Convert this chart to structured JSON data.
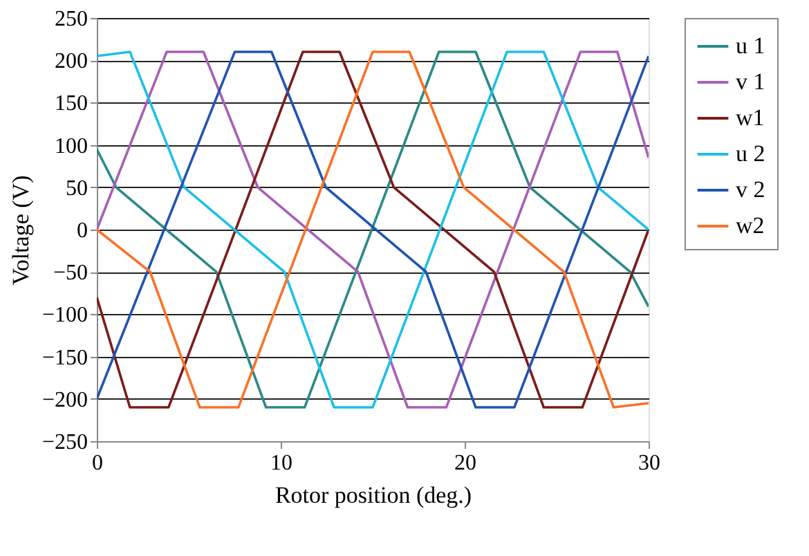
{
  "chart_data": {
    "type": "line",
    "xlabel": "Rotor position (deg.)",
    "ylabel": "Voltage (V)",
    "xlim": [
      0,
      30
    ],
    "xticks": [
      0,
      10,
      20,
      30
    ],
    "ylim": [
      -250,
      250
    ],
    "yticks": [
      -250,
      -200,
      -150,
      -100,
      -50,
      0,
      50,
      100,
      150,
      200,
      250
    ],
    "grid": "y",
    "legend": "right",
    "marker": "none",
    "line_style": "solid",
    "series": [
      {
        "name": "u 1",
        "color": "#2a8a86",
        "x": [
          0,
          1.05,
          6.5,
          9.2,
          11.3,
          18.6,
          20.6,
          23.55,
          29,
          30
        ],
        "values": [
          95,
          50,
          -50,
          -210,
          -210,
          210,
          210,
          50,
          -50,
          -91
        ]
      },
      {
        "name": "v 1",
        "color": "#a75fb5",
        "x": [
          0,
          3.8,
          5.8,
          8.75,
          14.2,
          16.9,
          19,
          26.3,
          28.3,
          30
        ],
        "values": [
          0,
          210,
          210,
          50,
          -50,
          -210,
          -210,
          210,
          210,
          85
        ]
      },
      {
        "name": "w1",
        "color": "#7b1c1c",
        "x": [
          0,
          1.8,
          3.9,
          11.2,
          13.2,
          16.15,
          21.6,
          24.3,
          26.4,
          30
        ],
        "values": [
          -80,
          -210,
          -210,
          210,
          210,
          50,
          -50,
          -210,
          -210,
          0
        ]
      },
      {
        "name": "u 2",
        "color": "#1fbfe8",
        "x": [
          0,
          1.8,
          4.75,
          10.2,
          12.9,
          15,
          22.3,
          24.3,
          27.25,
          30
        ],
        "values": [
          205,
          210,
          50,
          -50,
          -210,
          -210,
          210,
          210,
          50,
          0
        ]
      },
      {
        "name": "v 2",
        "color": "#2154b0",
        "x": [
          0,
          7.5,
          9.5,
          12.45,
          17.9,
          20.6,
          22.7,
          30
        ],
        "values": [
          -200,
          210,
          210,
          50,
          -50,
          -210,
          -210,
          205
        ]
      },
      {
        "name": "w2",
        "color": "#f97228",
        "x": [
          0,
          2.9,
          5.6,
          7.7,
          15,
          17,
          19.95,
          25.4,
          28.1,
          30
        ],
        "values": [
          0,
          -50,
          -210,
          -210,
          210,
          210,
          50,
          -50,
          -210,
          -205
        ]
      }
    ]
  }
}
